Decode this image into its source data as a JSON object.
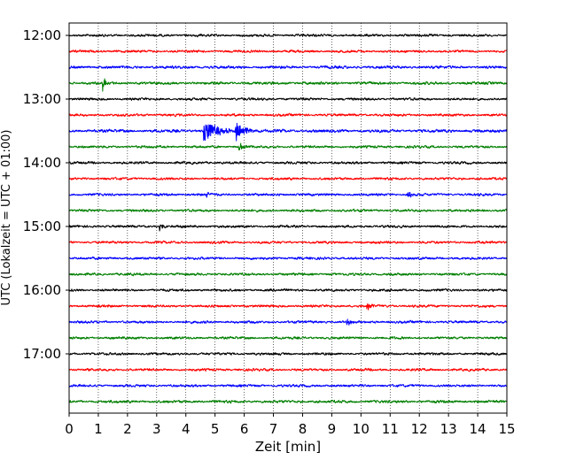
{
  "chart_data": {
    "type": "line",
    "subtype": "helicorder",
    "xlabel": "Zeit  [min]",
    "ylabel": "UTC (Lokalzeit = UTC + 01:00)",
    "xlim": [
      0,
      15
    ],
    "x_ticks": [
      "0",
      "1",
      "2",
      "3",
      "4",
      "5",
      "6",
      "7",
      "8",
      "9",
      "10",
      "11",
      "12",
      "13",
      "14",
      "15"
    ],
    "y_hour_labels": [
      "12:00",
      "13:00",
      "14:00",
      "15:00",
      "16:00",
      "17:00"
    ],
    "grid": "vertical-dotted",
    "trace_interval_min": 15,
    "trace_colors": [
      "#000000",
      "#ff0000",
      "#0000ff",
      "#007f00"
    ],
    "traces": [
      {
        "start": "12:00",
        "noise": 1.0
      },
      {
        "start": "12:15",
        "noise": 1.0
      },
      {
        "start": "12:30",
        "noise": 1.1
      },
      {
        "start": "12:45",
        "noise": 1.1,
        "events": [
          {
            "t": 1.15,
            "amp": 11,
            "dur": 0.15
          }
        ]
      },
      {
        "start": "13:00",
        "noise": 1.0
      },
      {
        "start": "13:15",
        "noise": 1.0
      },
      {
        "start": "13:30",
        "noise": 1.2,
        "events": [
          {
            "t": 4.6,
            "amp": 9,
            "dur": 1.6
          },
          {
            "t": 5.7,
            "amp": 9,
            "dur": 0.8
          }
        ]
      },
      {
        "start": "13:45",
        "noise": 1.0,
        "events": [
          {
            "t": 5.8,
            "amp": 4,
            "dur": 0.5
          }
        ]
      },
      {
        "start": "14:00",
        "noise": 1.0
      },
      {
        "start": "14:15",
        "noise": 1.0
      },
      {
        "start": "14:30",
        "noise": 1.0,
        "events": [
          {
            "t": 4.7,
            "amp": 3,
            "dur": 0.4
          },
          {
            "t": 11.6,
            "amp": 3,
            "dur": 0.5
          }
        ]
      },
      {
        "start": "14:45",
        "noise": 1.0
      },
      {
        "start": "15:00",
        "noise": 1.0,
        "events": [
          {
            "t": 3.1,
            "amp": 3,
            "dur": 0.4
          }
        ]
      },
      {
        "start": "15:15",
        "noise": 1.0
      },
      {
        "start": "15:30",
        "noise": 1.0
      },
      {
        "start": "15:45",
        "noise": 1.0
      },
      {
        "start": "16:00",
        "noise": 1.0
      },
      {
        "start": "16:15",
        "noise": 1.0,
        "events": [
          {
            "t": 10.2,
            "amp": 3,
            "dur": 0.5
          }
        ]
      },
      {
        "start": "16:30",
        "noise": 1.0,
        "events": [
          {
            "t": 9.5,
            "amp": 3,
            "dur": 0.5
          }
        ]
      },
      {
        "start": "16:45",
        "noise": 1.0
      },
      {
        "start": "17:00",
        "noise": 1.0
      },
      {
        "start": "17:15",
        "noise": 1.0
      },
      {
        "start": "17:30",
        "noise": 1.0
      },
      {
        "start": "17:45",
        "noise": 1.1
      }
    ]
  }
}
